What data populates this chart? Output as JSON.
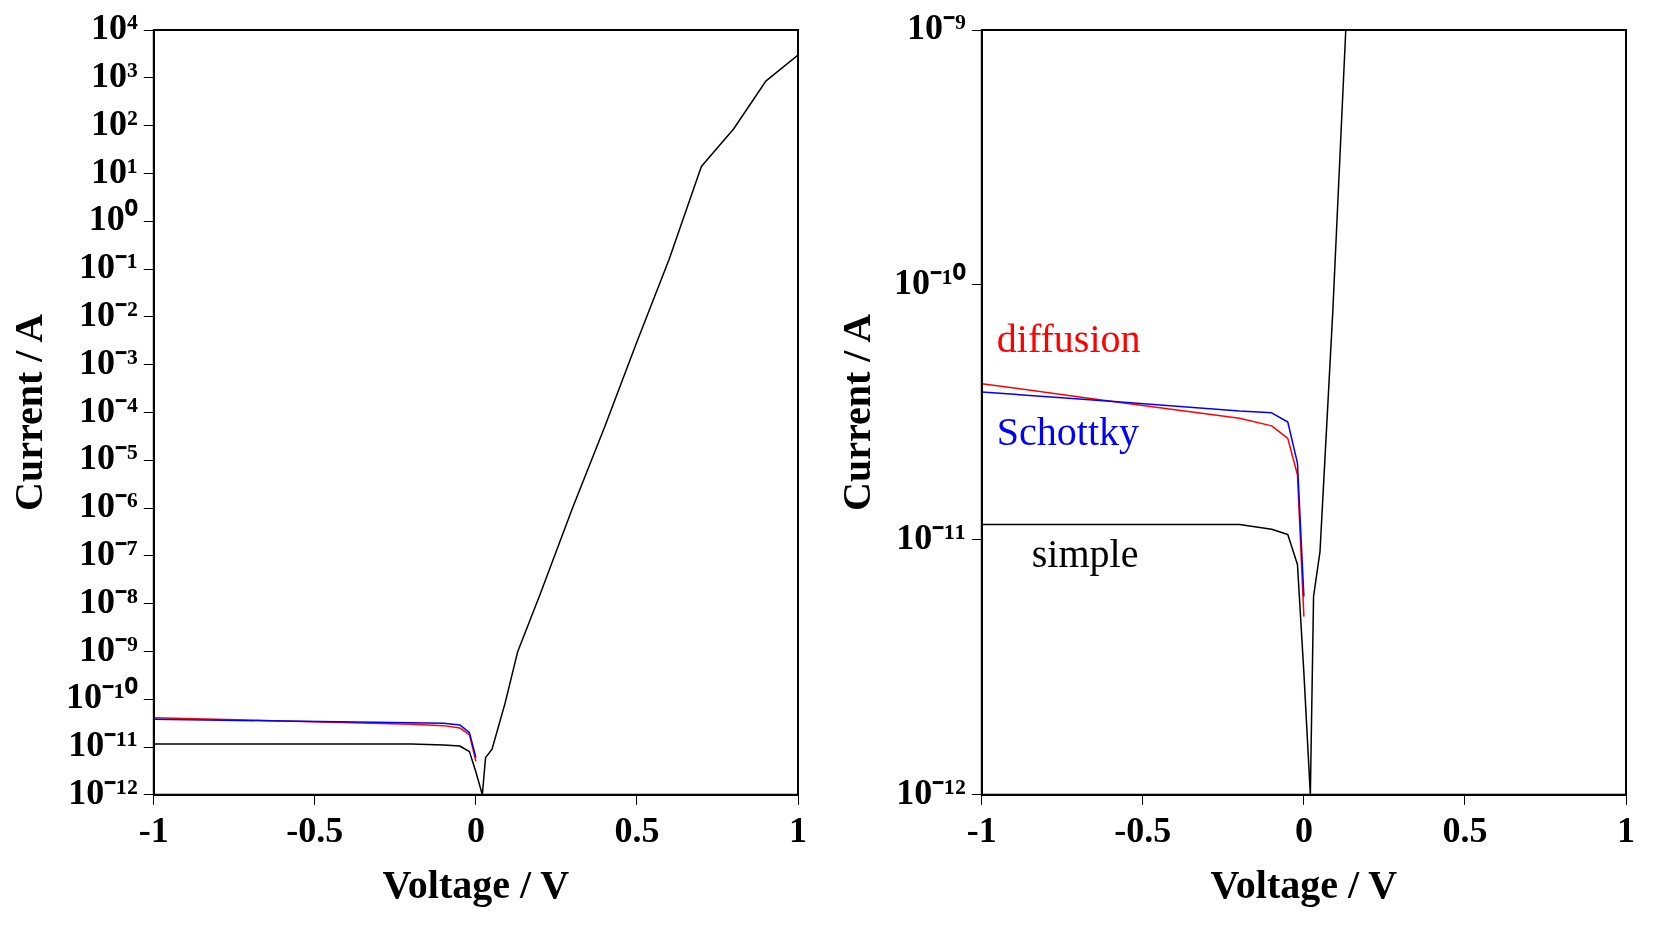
{
  "chart_data": [
    {
      "type": "line",
      "xlabel": "Voltage / V",
      "ylabel": "Current / A",
      "log": "y",
      "grid": false,
      "legend": false,
      "marker": "none",
      "xlim": [
        -1,
        1
      ],
      "xticks": [
        -1,
        -0.5,
        0,
        0.5,
        1
      ],
      "ylim": [
        1e-12,
        10000
      ],
      "yticks": [
        {
          "value": 1e-12,
          "label": "10⁻¹²"
        },
        {
          "value": 1e-11,
          "label": "10⁻¹¹"
        },
        {
          "value": 1e-10,
          "label": "10⁻¹⁰"
        },
        {
          "value": 1e-09,
          "label": "10⁻⁹"
        },
        {
          "value": 1e-08,
          "label": "10⁻⁸"
        },
        {
          "value": 1e-07,
          "label": "10⁻⁷"
        },
        {
          "value": 1e-06,
          "label": "10⁻⁶"
        },
        {
          "value": 1e-05,
          "label": "10⁻⁵"
        },
        {
          "value": 0.0001,
          "label": "10⁻⁴"
        },
        {
          "value": 0.001,
          "label": "10⁻³"
        },
        {
          "value": 0.01,
          "label": "10⁻²"
        },
        {
          "value": 0.1,
          "label": "10⁻¹"
        },
        {
          "value": 1,
          "label": "10⁰"
        },
        {
          "value": 10,
          "label": "10¹"
        },
        {
          "value": 100,
          "label": "10²"
        },
        {
          "value": 1000,
          "label": "10³"
        },
        {
          "value": 10000,
          "label": "10⁴"
        }
      ],
      "x": [
        -1,
        -0.6,
        -0.2,
        -0.1,
        -0.05,
        -0.02,
        0,
        0.02,
        0.03,
        0.05,
        0.09,
        0.13,
        0.2,
        0.3,
        0.4,
        0.5,
        0.6,
        0.7,
        0.8,
        0.9,
        1
      ],
      "series": [
        {
          "color": "#ff0000",
          "values": [
            4.1e-11,
            3.5e-11,
            3e-11,
            2.8e-11,
            2.5e-11,
            1.8e-11,
            5e-12,
            null,
            null,
            null,
            null,
            null,
            null,
            null,
            null,
            null,
            null,
            null,
            null,
            null,
            null
          ]
        },
        {
          "color": "#0000ff",
          "values": [
            3.8e-11,
            3.5e-11,
            3.2e-11,
            3.15e-11,
            2.9e-11,
            2e-11,
            6e-12,
            null,
            null,
            null,
            null,
            null,
            null,
            null,
            null,
            null,
            null,
            null,
            null,
            null,
            null
          ]
        },
        {
          "color": "#000000",
          "values": [
            1.15e-11,
            1.15e-11,
            1.15e-11,
            1.1e-11,
            1.05e-11,
            8e-12,
            3e-12,
            1e-12,
            6e-12,
            9e-12,
            8e-11,
            1e-09,
            1.6e-08,
            1e-06,
            5e-05,
            0.003,
            0.16,
            14,
            85,
            850,
            3000
          ]
        }
      ]
    },
    {
      "type": "line",
      "xlabel": "Voltage / V",
      "ylabel": "Current / A",
      "log": "y",
      "grid": false,
      "legend": false,
      "marker": "none",
      "xlim": [
        -1,
        1
      ],
      "xticks": [
        -1,
        -0.5,
        0,
        0.5,
        1
      ],
      "ylim": [
        1e-12,
        1e-09
      ],
      "yticks": [
        {
          "value": 1e-12,
          "label": "10⁻¹²"
        },
        {
          "value": 1e-11,
          "label": "10⁻¹¹"
        },
        {
          "value": 1e-10,
          "label": "10⁻¹⁰"
        },
        {
          "value": 1e-09,
          "label": "10⁻⁹"
        }
      ],
      "x": [
        -1,
        -0.6,
        -0.2,
        -0.1,
        -0.05,
        -0.02,
        0,
        0.02,
        0.03,
        0.05,
        0.09,
        0.13
      ],
      "series": [
        {
          "name": "diffusion",
          "color": "#ff0000",
          "values": [
            4.1e-11,
            3.5e-11,
            3e-11,
            2.8e-11,
            2.5e-11,
            1.8e-11,
            5e-12,
            null,
            null,
            null,
            null,
            null
          ]
        },
        {
          "name": "Schottky",
          "color": "#0000ff",
          "values": [
            3.8e-11,
            3.5e-11,
            3.2e-11,
            3.15e-11,
            2.9e-11,
            2e-11,
            6e-12,
            null,
            null,
            null,
            null,
            null
          ]
        },
        {
          "name": "simple",
          "color": "#000000",
          "values": [
            1.15e-11,
            1.15e-11,
            1.15e-11,
            1.1e-11,
            1.05e-11,
            8e-12,
            3e-12,
            1e-12,
            6e-12,
            9e-12,
            8e-11,
            1e-09
          ]
        }
      ]
    }
  ]
}
